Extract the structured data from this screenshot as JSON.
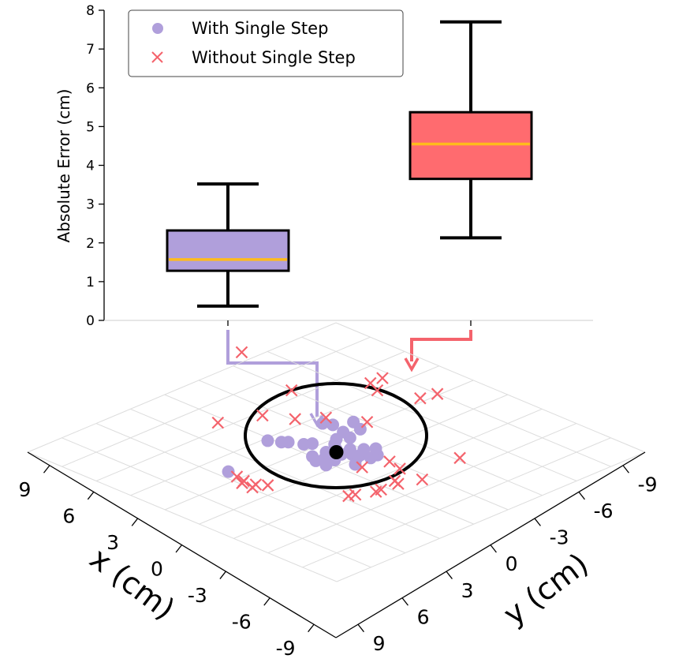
{
  "chart_data": [
    {
      "type": "box",
      "ylabel": "Absolute Error (cm)",
      "ylim": [
        0,
        8
      ],
      "yticks": [
        "0",
        "1",
        "2",
        "3",
        "4",
        "5",
        "6",
        "7",
        "8"
      ],
      "legend_position": "top-left",
      "legend": [
        {
          "label": "With Single Step",
          "marker": "circle",
          "color": "#b09fdb"
        },
        {
          "label": "Without Single Step",
          "marker": "x",
          "color": "#f4636c"
        }
      ],
      "series": [
        {
          "name": "With Single Step",
          "color": "#b09fdb",
          "median_color": "#ffbb1c",
          "whisker_low": 0.37,
          "q1": 1.28,
          "median": 1.57,
          "q3": 2.32,
          "whisker_high": 3.52
        },
        {
          "name": "Without Single Step",
          "color": "#ff6b6f",
          "median_color": "#ffbb1c",
          "whisker_low": 2.13,
          "q1": 3.65,
          "median": 4.55,
          "q3": 5.37,
          "whisker_high": 7.7
        }
      ]
    },
    {
      "type": "scatter",
      "xlabel": "x (cm)",
      "ylabel": "y (cm)",
      "xlim": [
        -9,
        9
      ],
      "ylim": [
        -9,
        9
      ],
      "x_ticks": [
        "9",
        "6",
        "3",
        "0",
        "-3",
        "-6",
        "-9"
      ],
      "y_ticks": [
        "-9",
        "-6",
        "-3",
        "0",
        "3",
        "6",
        "9"
      ],
      "target": {
        "x": 0,
        "y": 0,
        "color": "#000000"
      },
      "circle_radius": 5,
      "series": [
        {
          "name": "With Single Step",
          "marker": "circle",
          "color": "#b09fdb",
          "points": [
            {
              "x": 1.0,
              "y": -0.4
            },
            {
              "x": 1.2,
              "y": 0.0
            },
            {
              "x": 0.8,
              "y": 0.1
            },
            {
              "x": 0.4,
              "y": 0.3
            },
            {
              "x": 0.6,
              "y": 0.5
            },
            {
              "x": 0.2,
              "y": 0.1
            },
            {
              "x": 0.0,
              "y": 0.3
            },
            {
              "x": -0.3,
              "y": 0.6
            },
            {
              "x": -0.5,
              "y": 0.9
            },
            {
              "x": -0.2,
              "y": 1.0
            },
            {
              "x": 0.3,
              "y": 1.4
            },
            {
              "x": -0.6,
              "y": 1.4
            },
            {
              "x": -1.0,
              "y": 1.4
            },
            {
              "x": -1.4,
              "y": 0.9
            },
            {
              "x": -1.0,
              "y": 0.6
            },
            {
              "x": -0.6,
              "y": 0.2
            },
            {
              "x": -0.2,
              "y": -0.2
            },
            {
              "x": 0.3,
              "y": -0.3
            },
            {
              "x": -1.4,
              "y": -0.6
            },
            {
              "x": -0.9,
              "y": -0.9
            },
            {
              "x": -0.5,
              "y": -0.6
            },
            {
              "x": 0.1,
              "y": -1.3
            },
            {
              "x": 0.4,
              "y": -1.5
            },
            {
              "x": 0.7,
              "y": -2.1
            },
            {
              "x": 0.9,
              "y": -2.3
            },
            {
              "x": 1.2,
              "y": -2.8
            },
            {
              "x": -2.6,
              "y": -1.6
            },
            {
              "x": -1.6,
              "y": -2.4
            },
            {
              "x": -1.8,
              "y": -2.0
            },
            {
              "x": -1.6,
              "y": -1.2
            },
            {
              "x": -2.3,
              "y": -0.9
            },
            {
              "x": 4.5,
              "y": -1.8
            },
            {
              "x": 1.2,
              "y": 0.6
            }
          ]
        },
        {
          "name": "Without Single Step",
          "marker": "x",
          "color": "#f4636c",
          "points": [
            {
              "x": 4.6,
              "y": -1.2
            },
            {
              "x": 4.9,
              "y": -0.6
            },
            {
              "x": 4.7,
              "y": -0.7
            },
            {
              "x": 4.9,
              "y": 0.0
            },
            {
              "x": 4.6,
              "y": -0.1
            },
            {
              "x": 4.3,
              "y": 0.3
            },
            {
              "x": -0.7,
              "y": 3.0
            },
            {
              "x": -0.6,
              "y": 4.4
            },
            {
              "x": 0.4,
              "y": 4.0
            },
            {
              "x": 0.3,
              "y": 3.7
            },
            {
              "x": 1.3,
              "y": 3.9
            },
            {
              "x": 1.6,
              "y": 3.9
            },
            {
              "x": 2.4,
              "y": 3.5
            },
            {
              "x": 2.7,
              "y": 3.4
            },
            {
              "x": 0.3,
              "y": 1.8
            },
            {
              "x": -0.9,
              "y": 2.2
            },
            {
              "x": -3.2,
              "y": 4.0
            },
            {
              "x": -3.0,
              "y": -1.2
            },
            {
              "x": -6.2,
              "y": -1.3
            },
            {
              "x": -7.0,
              "y": -1.1
            },
            {
              "x": -5.5,
              "y": -3.1
            },
            {
              "x": -5.8,
              "y": -3.8
            },
            {
              "x": -6.5,
              "y": -3.8
            },
            {
              "x": -2.1,
              "y": -2.7
            },
            {
              "x": -1.1,
              "y": -3.5
            },
            {
              "x": -0.4,
              "y": -4.7
            },
            {
              "x": -3.0,
              "y": -5.6
            },
            {
              "x": -4.2,
              "y": -9.7
            },
            {
              "x": 1.4,
              "y": -5.5
            }
          ]
        }
      ]
    }
  ]
}
